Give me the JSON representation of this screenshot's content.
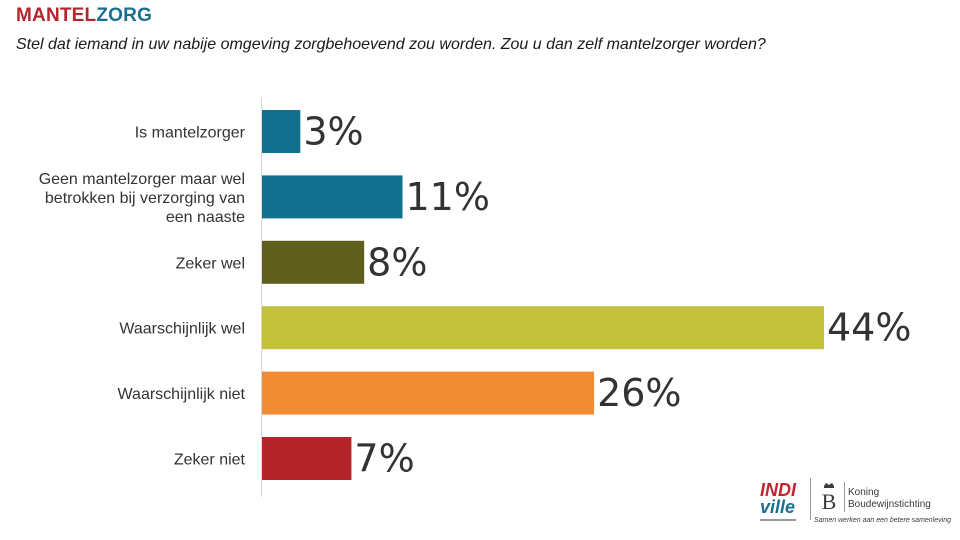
{
  "header": {
    "brand_part1": "MANTEL",
    "brand_part2": "ZORG",
    "question": "Stel dat iemand in uw nabije omgeving zorgbehoevend zou worden. Zou u dan zelf mantelzorger worden?"
  },
  "chart_data": {
    "type": "bar",
    "orientation": "horizontal",
    "categories": [
      "Is mantelzorger",
      "Geen mantelzorger maar wel betrokken bij verzorging van een naaste",
      "Zeker wel",
      "Waarschijnlijk wel",
      "Waarschijnlijk niet",
      "Zeker niet"
    ],
    "values": [
      3,
      11,
      8,
      44,
      26,
      7
    ],
    "value_labels": [
      "3%",
      "11%",
      "8%",
      "44%",
      "26%",
      "7%"
    ],
    "colors": [
      "#12708f",
      "#12708f",
      "#5e5f1a",
      "#c3c03c",
      "#f08c33",
      "#b3242b"
    ],
    "xlim": [
      0,
      44
    ],
    "title": "",
    "xlabel": "",
    "ylabel": "",
    "grid": false,
    "legend": "none"
  },
  "logos": {
    "indi_line1": "INDI",
    "indi_line2": "ville",
    "kbs_name_line1": "Koning",
    "kbs_name_line2": "Boudewijnstichting",
    "kbs_tagline": "Samen werken aan een betere samenleving"
  }
}
